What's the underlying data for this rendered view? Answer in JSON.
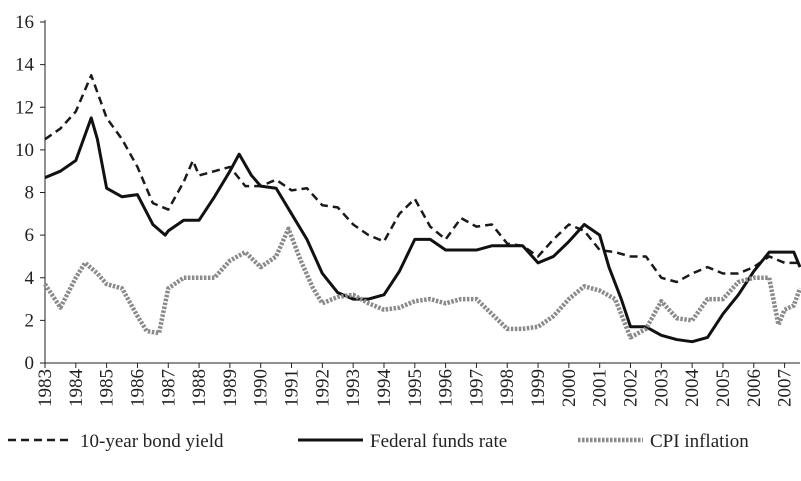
{
  "chart_data": {
    "type": "line",
    "xlim": [
      1983,
      2007.5
    ],
    "xticks": [
      1983,
      1984,
      1985,
      1986,
      1987,
      1988,
      1989,
      1990,
      1991,
      1992,
      1993,
      1994,
      1995,
      1996,
      1997,
      1998,
      1999,
      2000,
      2001,
      2002,
      2003,
      2004,
      2005,
      2006,
      2007
    ],
    "ylim": [
      0,
      16
    ],
    "yticks": [
      0,
      2,
      4,
      6,
      8,
      10,
      12,
      14,
      16
    ],
    "legend": "bottom",
    "series": [
      {
        "name": "10-year bond yield",
        "color": "#1a1a1a",
        "dash": "dashed",
        "x": [
          1983,
          1983.5,
          1984,
          1984.5,
          1985,
          1985.5,
          1986,
          1986.5,
          1987,
          1987.5,
          1987.8,
          1988,
          1988.5,
          1989,
          1989.5,
          1990,
          1990.5,
          1991,
          1991.5,
          1992,
          1992.5,
          1993,
          1993.5,
          1994,
          1994.5,
          1995,
          1995.5,
          1996,
          1996.5,
          1997,
          1997.5,
          1998,
          1998.5,
          1999,
          1999.5,
          2000,
          2000.5,
          2001,
          2001.5,
          2002,
          2002.5,
          2003,
          2003.5,
          2004,
          2004.5,
          2005,
          2005.5,
          2006,
          2006.5,
          2007,
          2007.5
        ],
        "values": [
          10.5,
          11.0,
          11.8,
          13.5,
          11.5,
          10.5,
          9.2,
          7.5,
          7.2,
          8.5,
          9.5,
          8.8,
          9.0,
          9.2,
          8.3,
          8.3,
          8.6,
          8.1,
          8.2,
          7.4,
          7.3,
          6.5,
          6.0,
          5.7,
          7.0,
          7.7,
          6.4,
          5.8,
          6.8,
          6.4,
          6.5,
          5.6,
          5.5,
          5.0,
          5.8,
          6.5,
          6.2,
          5.3,
          5.2,
          5.0,
          5.0,
          4.0,
          3.8,
          4.2,
          4.5,
          4.2,
          4.2,
          4.5,
          5.0,
          4.7,
          4.7
        ]
      },
      {
        "name": "Federal funds rate",
        "color": "#111111",
        "dash": "solid",
        "x": [
          1983,
          1983.5,
          1984,
          1984.5,
          1984.7,
          1985,
          1985.5,
          1986,
          1986.5,
          1986.9,
          1987,
          1987.5,
          1988,
          1988.5,
          1989,
          1989.3,
          1989.7,
          1990,
          1990.5,
          1991,
          1991.5,
          1992,
          1992.5,
          1993,
          1993.5,
          1994,
          1994.5,
          1995,
          1995.5,
          1996,
          1996.5,
          1997,
          1997.5,
          1998,
          1998.5,
          1999,
          1999.5,
          2000,
          2000.5,
          2001,
          2001.3,
          2001.7,
          2002,
          2002.5,
          2003,
          2003.5,
          2004,
          2004.5,
          2005,
          2005.5,
          2006,
          2006.5,
          2007,
          2007.3,
          2007.5
        ],
        "values": [
          8.7,
          9.0,
          9.5,
          11.5,
          10.5,
          8.2,
          7.8,
          7.9,
          6.5,
          6.0,
          6.2,
          6.7,
          6.7,
          7.8,
          9.0,
          9.8,
          8.8,
          8.3,
          8.2,
          7.0,
          5.8,
          4.2,
          3.3,
          3.0,
          3.0,
          3.2,
          4.3,
          5.8,
          5.8,
          5.3,
          5.3,
          5.3,
          5.5,
          5.5,
          5.5,
          4.7,
          5.0,
          5.7,
          6.5,
          6.0,
          4.5,
          3.0,
          1.7,
          1.7,
          1.3,
          1.1,
          1.0,
          1.2,
          2.3,
          3.2,
          4.3,
          5.2,
          5.2,
          5.2,
          4.5
        ]
      },
      {
        "name": "CPI inflation",
        "color": "#8a8a8a",
        "dash": "dotted",
        "x": [
          1983,
          1983.5,
          1984,
          1984.3,
          1984.7,
          1985,
          1985.5,
          1986,
          1986.3,
          1986.7,
          1987,
          1987.5,
          1988,
          1988.5,
          1989,
          1989.5,
          1990,
          1990.5,
          1990.9,
          1991.3,
          1991.7,
          1992,
          1992.5,
          1993,
          1993.5,
          1994,
          1994.5,
          1995,
          1995.5,
          1996,
          1996.5,
          1997,
          1997.5,
          1998,
          1998.5,
          1999,
          1999.5,
          2000,
          2000.5,
          2001,
          2001.5,
          2002,
          2002.5,
          2003,
          2003.5,
          2004,
          2004.5,
          2005,
          2005.5,
          2006,
          2006.5,
          2006.8,
          2007,
          2007.3,
          2007.5
        ],
        "values": [
          3.7,
          2.6,
          4.0,
          4.7,
          4.2,
          3.7,
          3.5,
          2.2,
          1.5,
          1.4,
          3.5,
          4.0,
          4.0,
          4.0,
          4.8,
          5.2,
          4.5,
          5.0,
          6.3,
          4.8,
          3.5,
          2.8,
          3.1,
          3.2,
          2.8,
          2.5,
          2.6,
          2.9,
          3.0,
          2.8,
          3.0,
          3.0,
          2.3,
          1.6,
          1.6,
          1.7,
          2.2,
          3.0,
          3.6,
          3.4,
          3.0,
          1.2,
          1.6,
          2.9,
          2.1,
          2.0,
          3.0,
          3.0,
          3.8,
          4.0,
          4.0,
          1.8,
          2.5,
          2.7,
          3.5
        ]
      }
    ]
  }
}
